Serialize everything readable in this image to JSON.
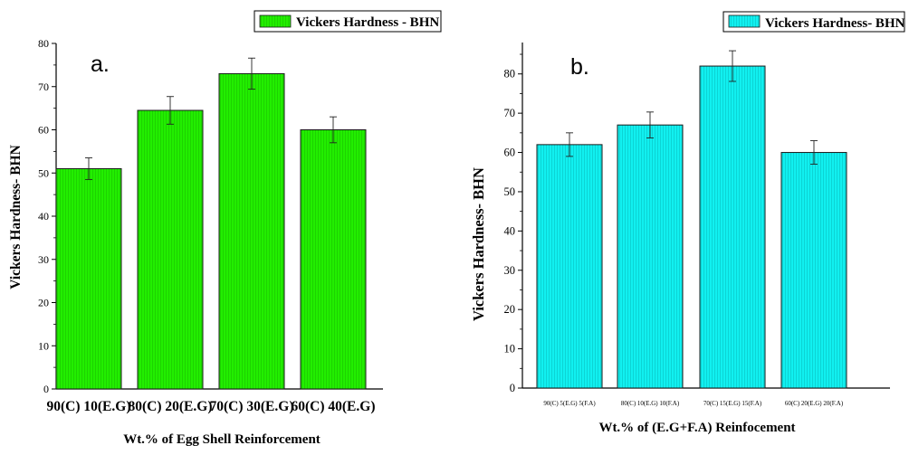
{
  "chart_data": [
    {
      "type": "bar",
      "panel_label": "a.",
      "categories": [
        "90(C) 10(E.G)",
        "80(C) 20(E.G)",
        "70(C) 30(E.G)",
        "60(C) 40(E.G)"
      ],
      "series": [
        {
          "name": "Vickers Hardness - BHN",
          "values": [
            51,
            64.5,
            73,
            60
          ],
          "errors": [
            2.5,
            3.2,
            3.6,
            3
          ]
        }
      ],
      "xlabel": "Wt.% of Egg Shell Reinforcement",
      "ylabel": "Vickers Hardness- BHN",
      "ylim": [
        0,
        80
      ],
      "yticks": [
        0,
        10,
        20,
        30,
        40,
        50,
        60,
        70,
        80
      ],
      "bar_color": "#22ee00",
      "legend_position": "top-right",
      "grid": false
    },
    {
      "type": "bar",
      "panel_label": "b.",
      "categories": [
        "90(C) 5(E.G) 5(F.A)",
        "80(C) 10(E.G) 10(F.A)",
        "70(C) 15(E.G) 15(F.A)",
        "60(C) 20(E.G) 20(F.A)"
      ],
      "series": [
        {
          "name": "Vickers Hardness- BHN",
          "values": [
            62,
            67,
            82,
            60
          ],
          "errors": [
            3,
            3.3,
            3.9,
            3
          ]
        }
      ],
      "xlabel": "Wt.% of (E.G+F.A) Reinfocement",
      "ylabel": "Vickers Hardness- BHN",
      "ylim": [
        0,
        88
      ],
      "yticks": [
        0,
        10,
        20,
        30,
        40,
        50,
        60,
        70,
        80
      ],
      "bar_color": "#11f0f0",
      "legend_position": "top-right",
      "grid": false
    }
  ]
}
